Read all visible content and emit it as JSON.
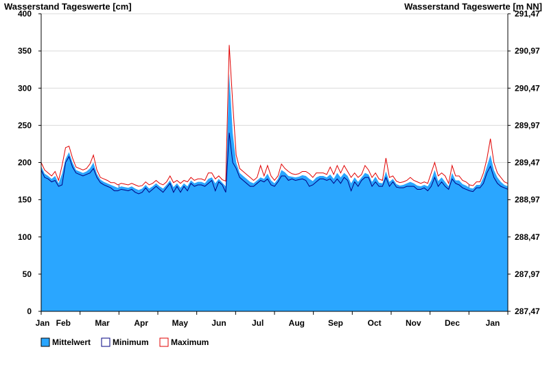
{
  "chart_data": {
    "type": "area",
    "title_left": "Wasserstand Tageswerte [cm]",
    "title_right": "Wasserstand Tageswerte [m NN]",
    "ylim": [
      0,
      400
    ],
    "y_ticks": [
      0,
      50,
      100,
      150,
      200,
      250,
      300,
      350,
      400
    ],
    "y_ticks_right": [
      "287,47",
      "287,97",
      "288,47",
      "288,97",
      "289,47",
      "289,97",
      "290,47",
      "290,97",
      "291,47"
    ],
    "x_month_labels": [
      "Jan",
      "Feb",
      "Mar",
      "Apr",
      "May",
      "Jun",
      "Jul",
      "Aug",
      "Sep",
      "Oct",
      "Nov",
      "Dec",
      "Jan"
    ],
    "grid": true,
    "legend": [
      "Mittelwert",
      "Minimum",
      "Maximum"
    ],
    "legend_position": "bottom-left",
    "colors": {
      "mean": "#2aa6ff",
      "minimum": "#000080",
      "maximum": "#e00000",
      "grid": "#d9d9d9",
      "month_line": "#1a4f9a"
    },
    "series": [
      {
        "name": "Mittelwert",
        "values": [
          195,
          185,
          182,
          178,
          182,
          172,
          185,
          205,
          214,
          200,
          190,
          188,
          186,
          188,
          192,
          200,
          185,
          177,
          174,
          172,
          170,
          168,
          166,
          168,
          167,
          166,
          168,
          165,
          163,
          165,
          170,
          165,
          168,
          172,
          168,
          165,
          170,
          176,
          167,
          172,
          166,
          172,
          168,
          176,
          172,
          174,
          174,
          172,
          178,
          180,
          172,
          178,
          173,
          168,
          320,
          240,
          200,
          186,
          182,
          178,
          174,
          172,
          176,
          180,
          178,
          185,
          176,
          172,
          178,
          190,
          187,
          182,
          181,
          180,
          181,
          183,
          182,
          178,
          175,
          180,
          182,
          182,
          180,
          184,
          178,
          186,
          180,
          186,
          182,
          172,
          180,
          174,
          180,
          186,
          184,
          174,
          181,
          173,
          172,
          188,
          174,
          178,
          171,
          169,
          170,
          172,
          174,
          172,
          169,
          168,
          170,
          168,
          176,
          190,
          175,
          180,
          174,
          168,
          186,
          176,
          176,
          171,
          169,
          166,
          165,
          170,
          170,
          180,
          195,
          210,
          190,
          180,
          174,
          170,
          168
        ]
      },
      {
        "name": "Minimum",
        "values": [
          190,
          180,
          178,
          174,
          176,
          168,
          170,
          200,
          208,
          194,
          186,
          184,
          182,
          184,
          186,
          192,
          180,
          173,
          170,
          168,
          166,
          162,
          162,
          164,
          163,
          162,
          164,
          160,
          158,
          160,
          166,
          160,
          164,
          168,
          164,
          160,
          166,
          172,
          160,
          168,
          160,
          168,
          162,
          172,
          168,
          170,
          170,
          168,
          172,
          176,
          162,
          174,
          170,
          160,
          240,
          200,
          192,
          180,
          176,
          172,
          168,
          168,
          172,
          176,
          174,
          178,
          170,
          168,
          174,
          182,
          182,
          176,
          178,
          176,
          177,
          178,
          176,
          168,
          170,
          174,
          178,
          178,
          176,
          178,
          172,
          178,
          172,
          180,
          176,
          162,
          174,
          168,
          176,
          180,
          180,
          168,
          174,
          168,
          168,
          180,
          168,
          174,
          167,
          166,
          166,
          168,
          168,
          168,
          164,
          164,
          166,
          162,
          168,
          180,
          168,
          174,
          168,
          164,
          178,
          172,
          170,
          166,
          164,
          162,
          161,
          166,
          166,
          172,
          186,
          195,
          180,
          172,
          168,
          166,
          164
        ]
      },
      {
        "name": "Maximum",
        "values": [
          200,
          190,
          186,
          182,
          188,
          176,
          196,
          220,
          222,
          206,
          194,
          192,
          190,
          192,
          198,
          210,
          190,
          180,
          178,
          176,
          173,
          173,
          170,
          172,
          171,
          170,
          172,
          170,
          168,
          169,
          174,
          170,
          172,
          176,
          172,
          170,
          174,
          182,
          173,
          176,
          172,
          176,
          174,
          180,
          176,
          178,
          178,
          176,
          186,
          186,
          178,
          182,
          177,
          175,
          358,
          280,
          210,
          192,
          188,
          184,
          180,
          176,
          180,
          196,
          182,
          196,
          182,
          176,
          182,
          198,
          192,
          188,
          185,
          184,
          185,
          188,
          188,
          185,
          180,
          186,
          186,
          186,
          184,
          194,
          184,
          196,
          186,
          196,
          188,
          180,
          186,
          180,
          184,
          196,
          190,
          180,
          186,
          178,
          176,
          206,
          180,
          182,
          175,
          173,
          174,
          176,
          180,
          176,
          174,
          172,
          174,
          172,
          186,
          200,
          182,
          186,
          182,
          172,
          196,
          182,
          182,
          176,
          174,
          170,
          169,
          174,
          174,
          186,
          205,
          232,
          200,
          186,
          180,
          174,
          172
        ]
      }
    ]
  }
}
